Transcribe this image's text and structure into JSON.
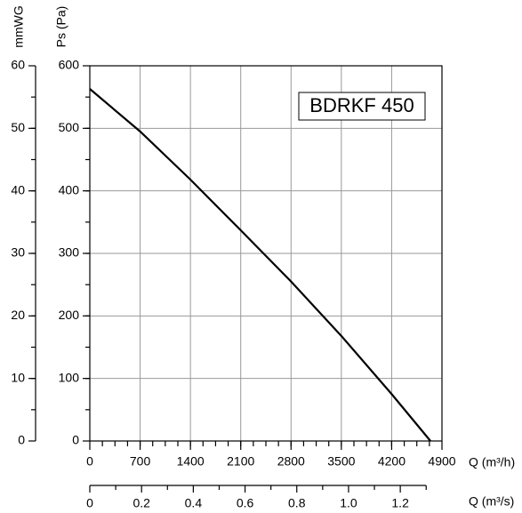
{
  "chart_data": {
    "type": "line",
    "annotation": "BDRKF 450",
    "xlabel": "Q (m³/h)",
    "x2label": "Q (m³/s)",
    "ylabel": "Ps (Pa)",
    "y2label": "mmWG",
    "x": [
      0,
      700,
      1400,
      2100,
      2800,
      3500,
      4200,
      4740
    ],
    "series": [
      {
        "color": "#000000",
        "values": [
          563,
          495,
          418,
          337,
          255,
          168,
          75,
          0
        ]
      }
    ],
    "xlim": [
      0,
      4900
    ],
    "xticks": [
      0,
      700,
      1400,
      2100,
      2800,
      3500,
      4200,
      4900
    ],
    "ylim": [
      0,
      600
    ],
    "yticks": [
      0,
      100,
      200,
      300,
      400,
      500,
      600
    ],
    "y2lim": [
      0,
      60
    ],
    "y2ticks": [
      0,
      10,
      20,
      30,
      40,
      50,
      60
    ],
    "x2lim": [
      0,
      1.3611
    ],
    "x2ticks": [
      0,
      0.2,
      0.4,
      0.6,
      0.8,
      {
        "value": 1,
        "label": "1.0"
      },
      1.2
    ],
    "grid": true
  }
}
